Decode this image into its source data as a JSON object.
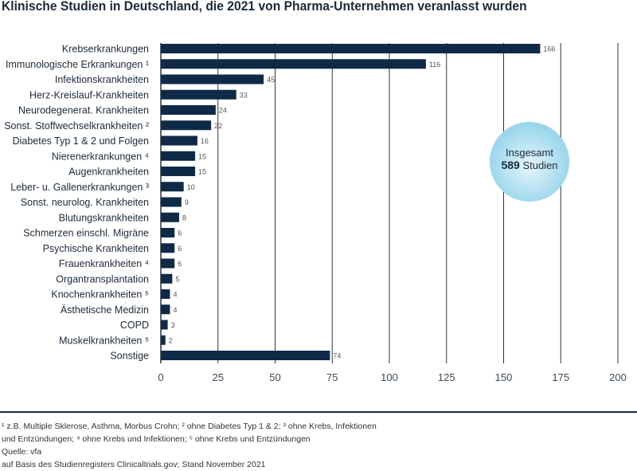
{
  "title": "Klinische Studien in Deutschland, die 2021 von Pharma-Unternehmen veranlasst wurden",
  "chart_data": {
    "type": "bar",
    "orientation": "horizontal",
    "title": "Klinische Studien in Deutschland, die 2021 von Pharma-Unternehmen veranlasst wurden",
    "categories": [
      "Krebserkrankungen",
      "Immunologische Erkrankungen ¹",
      "Infektionskrankheiten",
      "Herz-Kreislauf-Krankheiten",
      "Neurodegenerat. Krankheiten",
      "Sonst. Stoffwechselkrankheiten ²",
      "Diabetes Typ 1 & 2 und Folgen",
      "Nierenerkrankungen ⁴",
      "Augenkrankheiten",
      "Leber- u. Gallenerkrankungen ³",
      "Sonst. neurolog. Krankheiten",
      "Blutungskrankheiten",
      "Schmerzen einschl. Migräne",
      "Psychische Krankheiten",
      "Frauenkrankheiten ⁴",
      "Organtransplantation",
      "Knochenkrankheiten ⁵",
      "Ästhetische Medizin",
      "COPD",
      "Muskelkrankheiten ⁵",
      "Sonstige"
    ],
    "values": [
      166,
      116,
      45,
      33,
      24,
      22,
      16,
      15,
      15,
      10,
      9,
      8,
      6,
      6,
      6,
      5,
      4,
      4,
      3,
      2,
      74
    ],
    "xlim": [
      0,
      200
    ],
    "xticks": [
      "0",
      "25",
      "50",
      "75",
      "100",
      "125",
      "150",
      "175",
      "200"
    ],
    "grid": true,
    "bar_color": "#0f2a47",
    "annotation": {
      "line1": "Insgesamt",
      "number": "589",
      "line2": "Studien"
    }
  },
  "footnotes": [
    "¹ z.B. Multiple Sklerose, Asthma, Morbus Crohn; ² ohne Diabetes Typ 1 & 2; ³ ohne Krebs, Infektionen",
    "und Entzündungen; ⁴ ohne Krebs und Infektionen; ⁵ ohne Krebs und Entzündungen",
    "Quelle: vfa",
    "auf Basis des Studienregisters Clinicaltrials.gov; Stand November 2021"
  ]
}
